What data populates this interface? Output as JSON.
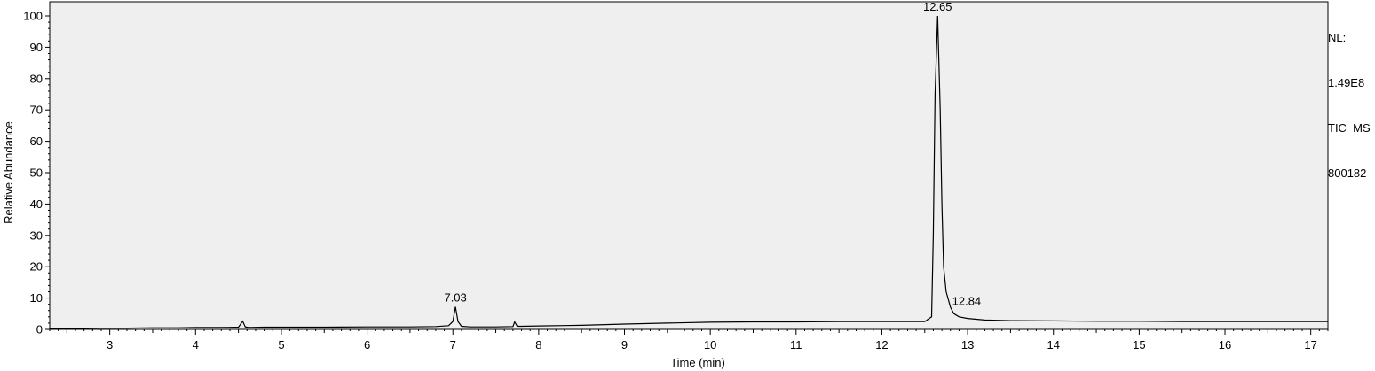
{
  "chart_data": {
    "type": "line",
    "xlabel": "Time (min)",
    "ylabel": "Relative Abundance",
    "xlim": [
      2.3,
      17.2
    ],
    "ylim": [
      0,
      100
    ],
    "x_ticks": [
      3,
      4,
      5,
      6,
      7,
      8,
      9,
      10,
      11,
      12,
      13,
      14,
      15,
      16,
      17
    ],
    "y_ticks": [
      0,
      10,
      20,
      30,
      40,
      50,
      60,
      70,
      80,
      90,
      100
    ],
    "x_tick_labels": [
      "3",
      "4",
      "5",
      "6",
      "7",
      "8",
      "9",
      "10",
      "11",
      "12",
      "13",
      "14",
      "15",
      "16",
      "17"
    ],
    "y_tick_labels": [
      "0",
      "10",
      "20",
      "30",
      "40",
      "50",
      "60",
      "70",
      "80",
      "90",
      "100"
    ],
    "grid": false,
    "plot_background": "#efefef",
    "line_color": "#000000",
    "series": [
      {
        "x": [
          2.3,
          2.5,
          2.7,
          2.9,
          3.0,
          3.2,
          3.5,
          3.8,
          4.0,
          4.3,
          4.5,
          4.55,
          4.58,
          4.62,
          4.8,
          5.0,
          5.5,
          6.0,
          6.5,
          6.8,
          6.95,
          7.0,
          7.03,
          7.06,
          7.1,
          7.2,
          7.5,
          7.7,
          7.72,
          7.75,
          7.8,
          8.0,
          8.5,
          9.0,
          9.5,
          10.0,
          10.5,
          11.0,
          11.5,
          12.0,
          12.5,
          12.58,
          12.6,
          12.62,
          12.65,
          12.68,
          12.7,
          12.72,
          12.75,
          12.8,
          12.84,
          12.9,
          13.0,
          13.2,
          13.5,
          14.0,
          14.5,
          15.0,
          15.5,
          16.0,
          16.5,
          17.0,
          17.2
        ],
        "y": [
          0.2,
          0.3,
          0.3,
          0.4,
          0.4,
          0.4,
          0.5,
          0.5,
          0.6,
          0.6,
          0.7,
          2.6,
          0.8,
          0.6,
          0.7,
          0.7,
          0.7,
          0.8,
          0.8,
          0.9,
          1.2,
          2.5,
          7.2,
          2.5,
          1.0,
          0.8,
          0.8,
          0.9,
          2.4,
          1.0,
          1.0,
          1.1,
          1.3,
          1.7,
          2.0,
          2.3,
          2.4,
          2.4,
          2.5,
          2.5,
          2.5,
          4.0,
          30.0,
          75.0,
          100.0,
          70.0,
          40.0,
          20.0,
          12.0,
          7.0,
          5.0,
          4.0,
          3.5,
          3.0,
          2.8,
          2.7,
          2.6,
          2.6,
          2.5,
          2.5,
          2.5,
          2.5,
          2.5
        ]
      }
    ],
    "annotations": [
      {
        "x": 7.03,
        "y": 7.2,
        "text": "7.03"
      },
      {
        "x": 12.65,
        "y": 100,
        "text": "12.65"
      },
      {
        "x": 12.84,
        "y": 5.0,
        "text": "12.84"
      }
    ]
  },
  "side_info": {
    "line1": "NL:",
    "line2": "1.49E8",
    "line3": "TIC  MS",
    "line4": "800182-"
  }
}
